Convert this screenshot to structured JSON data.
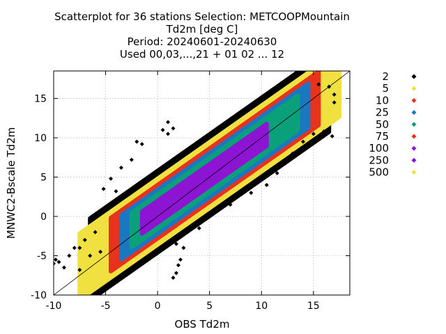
{
  "chart_data": {
    "type": "scatter",
    "title_lines": [
      "Scatterplot for   36 stations Selection: METCOOPMountain",
      "Td2m [deg C]",
      "Period: 20240601-20240630",
      "Used 00,03,...,21 + 01 02 ... 12"
    ],
    "xlabel": "OBS Td2m",
    "ylabel": "MNWC2-Bscale Td2m",
    "xlim": [
      -10,
      18.5
    ],
    "ylim": [
      -10,
      18.5
    ],
    "xticks": [
      -10,
      -5,
      0,
      5,
      10,
      15
    ],
    "yticks": [
      -10,
      -5,
      0,
      5,
      10,
      15
    ],
    "grid": true,
    "diagonal_line": true,
    "legend_position": "right",
    "legend": [
      {
        "label": "2",
        "color": "#000000"
      },
      {
        "label": "5",
        "color": "#f0e040"
      },
      {
        "label": "10",
        "color": "#e8321e"
      },
      {
        "label": "25",
        "color": "#1a78c2"
      },
      {
        "label": "50",
        "color": "#0aa07a"
      },
      {
        "label": "75",
        "color": "#e8321e"
      },
      {
        "label": "100",
        "color": "#8c14d2"
      },
      {
        "label": "250",
        "color": "#8c14d2"
      },
      {
        "label": "500",
        "color": "#f0e040"
      }
    ],
    "density_bands": [
      {
        "level": "2",
        "color": "#000000",
        "width": 5.2
      },
      {
        "level": "5",
        "color": "#f0e040",
        "width": 4.2
      },
      {
        "level": "10",
        "color": "#e8321e",
        "width": 3.4
      },
      {
        "level": "25",
        "color": "#1a78c2",
        "width": 2.8
      },
      {
        "level": "50",
        "color": "#0aa07a",
        "width": 2.2
      },
      {
        "level": "100",
        "color": "#8c14d2",
        "width": 1.4
      }
    ],
    "cloud_axis": {
      "x": [
        -10,
        17
      ],
      "intercept": 0.6,
      "slope": 0.93
    },
    "cloud_fill_x": [
      [
        -6.5,
        16.5
      ],
      [
        -7.5,
        17.5
      ],
      [
        -4.5,
        15.5
      ],
      [
        -3.5,
        14.5
      ],
      [
        -2.5,
        13.5
      ],
      [
        -1.5,
        10.5
      ]
    ],
    "outliers": [
      [
        -10,
        -6
      ],
      [
        -9.8,
        -5.5
      ],
      [
        -9,
        -6.5
      ],
      [
        -8.5,
        -5
      ],
      [
        -8,
        -4
      ],
      [
        -7.5,
        -6.8
      ],
      [
        -7,
        -3
      ],
      [
        -6.5,
        -5
      ],
      [
        -6,
        -2
      ],
      [
        -5.5,
        -4.5
      ],
      [
        -5.2,
        3.5
      ],
      [
        -4.5,
        4.8
      ],
      [
        -4,
        3.2
      ],
      [
        -3.5,
        6.2
      ],
      [
        -2.5,
        7.2
      ],
      [
        -2,
        9.5
      ],
      [
        -1.5,
        9.2
      ],
      [
        0.5,
        11
      ],
      [
        1,
        10.5
      ],
      [
        1,
        12
      ],
      [
        1.5,
        11.2
      ],
      [
        1.8,
        -7.2
      ],
      [
        2,
        -6.2
      ],
      [
        2.2,
        -5.5
      ],
      [
        1.5,
        -7.8
      ],
      [
        2.5,
        -4
      ],
      [
        1.8,
        -3.5
      ],
      [
        4,
        -1.5
      ],
      [
        7,
        1.5
      ],
      [
        9,
        3
      ],
      [
        10.5,
        4
      ],
      [
        11.5,
        5.5
      ],
      [
        13,
        8
      ],
      [
        14,
        9.5
      ],
      [
        15,
        10.5
      ],
      [
        16,
        10.8
      ],
      [
        16.8,
        10.2
      ],
      [
        17,
        15.5
      ],
      [
        16.5,
        16.5
      ],
      [
        17,
        14.5
      ],
      [
        15.5,
        16.8
      ],
      [
        -7.5,
        -4
      ],
      [
        -9.5,
        -5.8
      ]
    ],
    "series": []
  }
}
